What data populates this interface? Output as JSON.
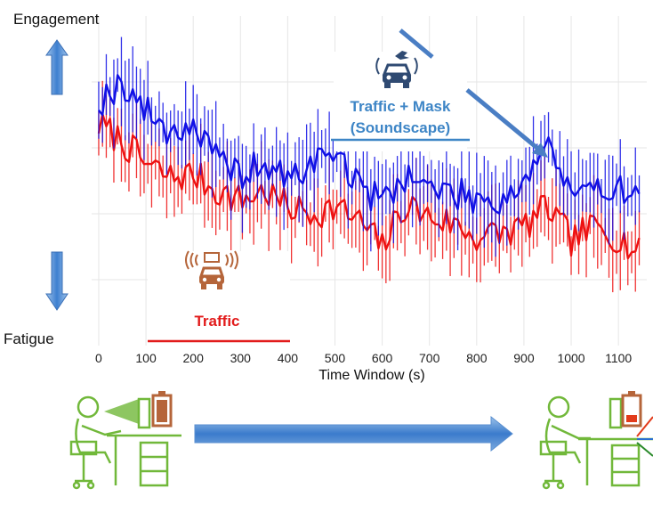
{
  "chart_data": {
    "type": "line",
    "title": "",
    "xlabel": "Time Window (s)",
    "ylabel": "",
    "x_ticks": [
      0,
      100,
      200,
      300,
      400,
      500,
      600,
      700,
      800,
      900,
      1000,
      1100
    ],
    "xlim": [
      -15,
      1160
    ],
    "ylim": [
      0,
      1
    ],
    "grid": true,
    "y_top_label": "Engagement",
    "y_bottom_label": "Fatigue",
    "series": [
      {
        "name": "Traffic + Mask (Soundscape)",
        "color": "#1010e6",
        "error_bars": true,
        "x": [
          0,
          50,
          100,
          150,
          200,
          250,
          300,
          350,
          400,
          450,
          500,
          550,
          600,
          650,
          700,
          750,
          800,
          850,
          900,
          950,
          1000,
          1050,
          1100,
          1150
        ],
        "values": [
          0.74,
          0.8,
          0.71,
          0.65,
          0.67,
          0.56,
          0.52,
          0.55,
          0.5,
          0.55,
          0.6,
          0.48,
          0.44,
          0.52,
          0.48,
          0.46,
          0.45,
          0.44,
          0.5,
          0.62,
          0.45,
          0.46,
          0.5,
          0.42
        ]
      },
      {
        "name": "Traffic",
        "color": "#ee1111",
        "error_bars": true,
        "x": [
          0,
          50,
          100,
          150,
          200,
          250,
          300,
          350,
          400,
          450,
          500,
          550,
          600,
          650,
          700,
          750,
          800,
          850,
          900,
          950,
          1000,
          1050,
          1100,
          1150
        ],
        "values": [
          0.67,
          0.62,
          0.55,
          0.51,
          0.52,
          0.47,
          0.44,
          0.47,
          0.42,
          0.4,
          0.42,
          0.38,
          0.3,
          0.43,
          0.39,
          0.37,
          0.33,
          0.34,
          0.36,
          0.42,
          0.32,
          0.36,
          0.33,
          0.27
        ]
      }
    ],
    "annotations": [
      {
        "line1": "Traffic + Mask",
        "line2": "(Soundscape)",
        "color": "#3d85c6"
      },
      {
        "line1": "Traffic",
        "color": "#e21b1b"
      }
    ]
  }
}
